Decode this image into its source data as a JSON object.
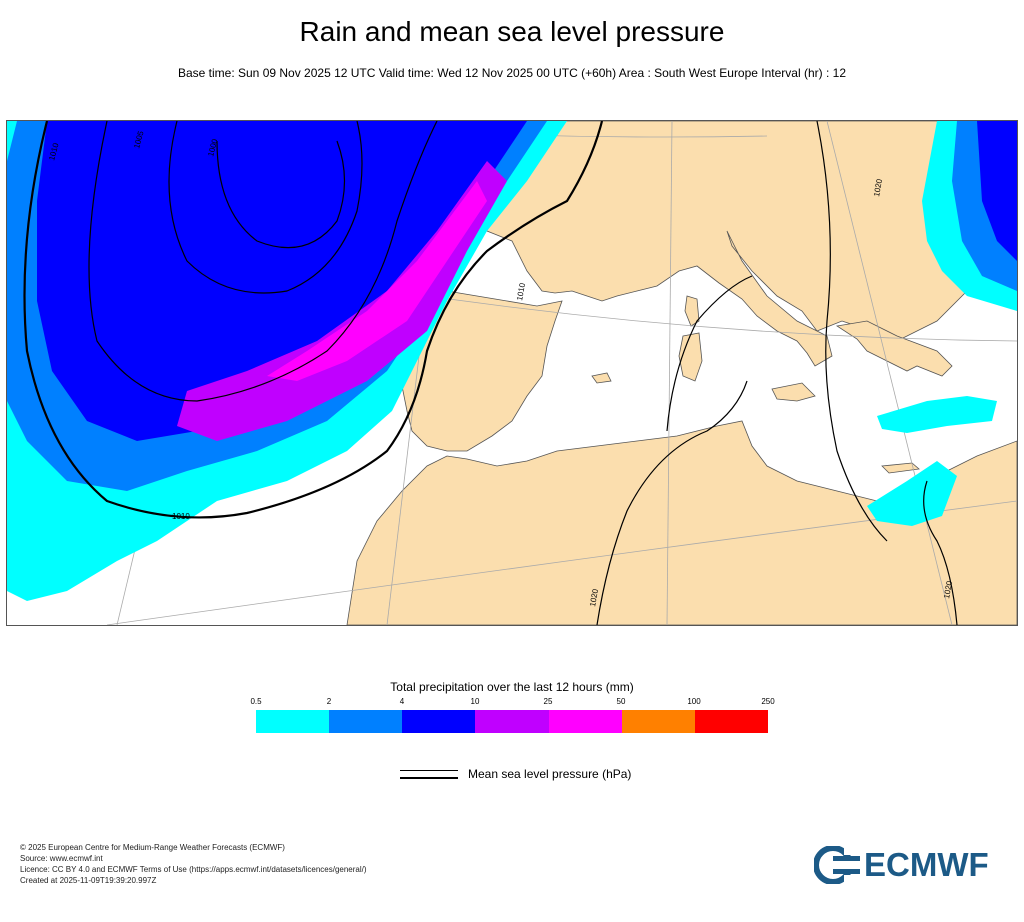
{
  "header": {
    "title": "Rain and mean sea level pressure",
    "subtitle": "Base time: Sun 09 Nov 2025 12 UTC Valid time: Wed 12 Nov 2025 00 UTC (+60h) Area : South West Europe Interval (hr) : 12"
  },
  "map": {
    "isobar_labels": [
      "1010",
      "1005",
      "1000",
      "1010",
      "1010",
      "1020",
      "1020",
      "1020"
    ],
    "colors": {
      "land": "#fbdeae",
      "sea": "#ffffff",
      "border": "#555555",
      "grid": "#aaaaaa"
    }
  },
  "legend": {
    "title": "Total precipitation over the last 12 hours (mm)",
    "ticks": [
      "0.5",
      "2",
      "4",
      "10",
      "25",
      "50",
      "100",
      "250"
    ],
    "colors": [
      "#00ffff",
      "#0080ff",
      "#0000ff",
      "#c000ff",
      "#ff00ff",
      "#ff8000",
      "#ff0000"
    ],
    "pressure_label": "Mean sea level pressure (hPa)"
  },
  "footer": {
    "line1": "© 2025 European Centre for Medium-Range Weather Forecasts (ECMWF)",
    "line2": "Source: www.ecmwf.int",
    "line3": "Licence: CC BY 4.0 and ECMWF Terms of Use (https://apps.ecmwf.int/datasets/licences/general/)",
    "line4": "Created at 2025-11-09T19:39:20.997Z"
  },
  "logo": {
    "text": "ECMWF",
    "color": "#1c5a87"
  }
}
